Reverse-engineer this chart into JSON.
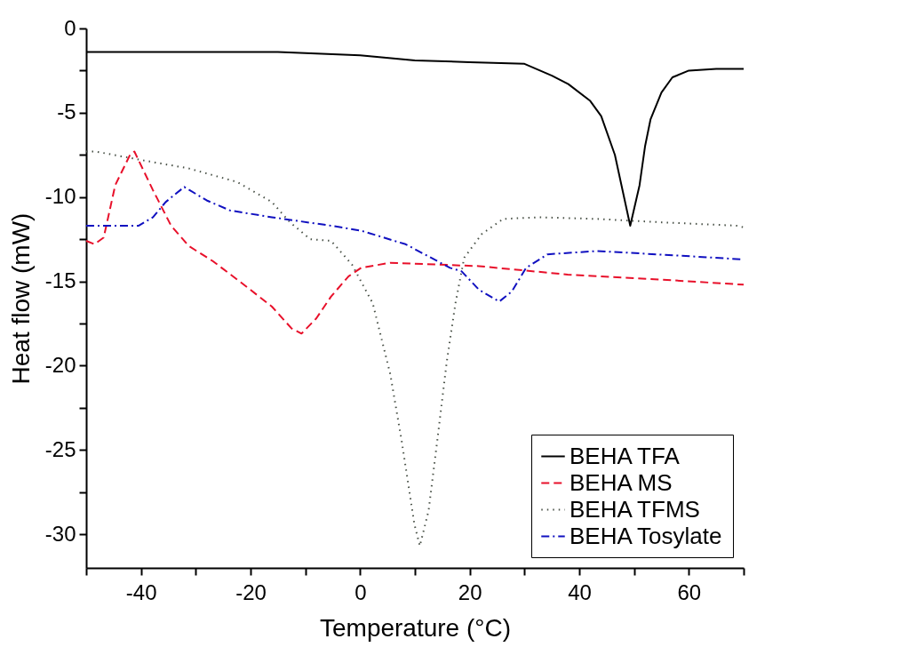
{
  "chart_data": {
    "type": "line",
    "xlabel": "Temperature (°C)",
    "ylabel": "Heat flow (mW)",
    "xlim": [
      -50,
      70
    ],
    "ylim": [
      -32,
      0
    ],
    "xticks": [
      {
        "value": -50,
        "label": null
      },
      -40,
      {
        "value": -30,
        "label": null
      },
      -20,
      {
        "value": -10,
        "label": null
      },
      0,
      {
        "value": 10,
        "label": null
      },
      20,
      {
        "value": 30,
        "label": null
      },
      40,
      {
        "value": 50,
        "label": null
      },
      60,
      {
        "value": 70,
        "label": null
      }
    ],
    "yticks": [
      0,
      {
        "value": -2.5,
        "label": null
      },
      -5,
      {
        "value": -7.5,
        "label": null
      },
      -10,
      {
        "value": -12.5,
        "label": null
      },
      -15,
      {
        "value": -17.5,
        "label": null
      },
      -20,
      {
        "value": -22.5,
        "label": null
      },
      -25,
      {
        "value": -27.5,
        "label": null
      },
      -30
    ],
    "grid": false,
    "legend": "bottom right",
    "marker": "none",
    "series": [
      {
        "name": "BEHA TFA",
        "color": "#000000",
        "line_style": "solid",
        "x": [
          -50,
          -30,
          -15,
          0,
          10,
          20,
          30,
          35,
          38,
          42,
          44,
          46.5,
          49.3,
          51,
          52,
          53,
          55,
          57,
          60,
          65,
          70
        ],
        "values": [
          -1.4,
          -1.4,
          -1.4,
          -1.6,
          -1.9,
          -2.0,
          -2.1,
          -2.8,
          -3.3,
          -4.3,
          -5.2,
          -7.5,
          -11.7,
          -9.3,
          -7,
          -5.4,
          -3.8,
          -2.9,
          -2.5,
          -2.4,
          -2.4
        ]
      },
      {
        "name": "BEHA MS",
        "color": "#e8102a",
        "line_style": "dashed",
        "x": [
          -50,
          -48.5,
          -46.8,
          -44.7,
          -42,
          -41.2,
          -37.8,
          -34.5,
          -31.3,
          -26.9,
          -21.6,
          -16.1,
          -12.5,
          -10.7,
          -8,
          -5.3,
          -2.1,
          0.2,
          5.5,
          21.7,
          37.9,
          55,
          70
        ],
        "values": [
          -12.6,
          -12.8,
          -12.4,
          -9.3,
          -7.5,
          -7.3,
          -9.6,
          -11.7,
          -12.9,
          -13.8,
          -15.1,
          -16.5,
          -17.8,
          -18.1,
          -17.2,
          -15.9,
          -14.7,
          -14.2,
          -13.9,
          -14.1,
          -14.6,
          -14.9,
          -15.2
        ]
      },
      {
        "name": "BEHA TFMS",
        "color": "#4a5248",
        "line_style": "dotted",
        "x": [
          -50,
          -48.3,
          -40,
          -31.3,
          -22.5,
          -16.1,
          -12.8,
          -9.1,
          -5.3,
          -1.5,
          2.3,
          5.5,
          7.6,
          9.9,
          10.9,
          12.5,
          14.1,
          15.8,
          17.4,
          19,
          22.2,
          26.1,
          32.6,
          43.3,
          55,
          68.7,
          70
        ],
        "values": [
          -7.3,
          -7.3,
          -7.8,
          -8.3,
          -9.1,
          -10.3,
          -11.5,
          -12.5,
          -12.6,
          -14,
          -16.3,
          -20.5,
          -24.5,
          -29.4,
          -30.7,
          -28.6,
          -24.4,
          -19.8,
          -16.3,
          -13.6,
          -12.2,
          -11.3,
          -11.2,
          -11.3,
          -11.5,
          -11.7,
          -11.8
        ]
      },
      {
        "name": "BEHA Tosylate",
        "color": "#1010c0",
        "line_style": "dashdot",
        "x": [
          -50,
          -40.4,
          -37.8,
          -35.5,
          -32.1,
          -28,
          -23.7,
          -16.1,
          -5.3,
          0.2,
          8.3,
          16.4,
          18.5,
          21.7,
          25.4,
          27.7,
          30.3,
          34.2,
          43.3,
          54.1,
          69.9
        ],
        "values": [
          -11.7,
          -11.7,
          -11.2,
          -10.3,
          -9.4,
          -10.2,
          -10.8,
          -11.2,
          -11.7,
          -12,
          -12.8,
          -14.2,
          -14.4,
          -15.5,
          -16.2,
          -15.6,
          -14.2,
          -13.4,
          -13.2,
          -13.4,
          -13.7
        ]
      }
    ]
  }
}
